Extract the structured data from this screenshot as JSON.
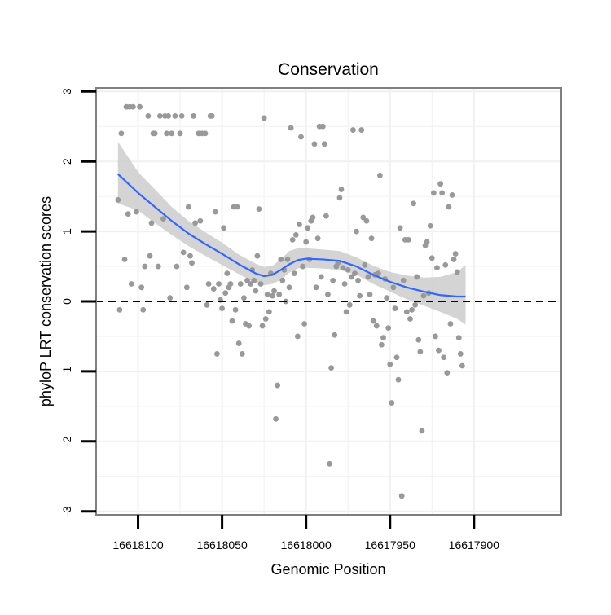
{
  "chart_data": {
    "type": "scatter",
    "title": "Conservation",
    "xlabel": "Genomic Position",
    "ylabel": "phyloP LRT conservation scores",
    "x_reversed": true,
    "xlim": [
      16618125,
      16617848
    ],
    "ylim": [
      -3.05,
      3.05
    ],
    "x_ticks": [
      16618100,
      16618050,
      16618000,
      16617950,
      16617900
    ],
    "x_tick_labels": [
      "16618100",
      "16618050",
      "16618000",
      "16617950",
      "16617900"
    ],
    "y_ticks": [
      3,
      2,
      1,
      0,
      -1,
      -2,
      -3
    ],
    "y_tick_labels": [
      "3",
      "2",
      "1",
      "0",
      "-1",
      "-2",
      "-3"
    ],
    "grid": true,
    "reference_line": {
      "y": 0,
      "style": "dashed",
      "color": "#000000"
    },
    "colors": {
      "points": "#999999",
      "smooth": "#3366FF",
      "ribbon": "#cccccc",
      "panel_border": "#7f7f7f",
      "grid": "#f0f0f0"
    },
    "series": [
      {
        "name": "scores",
        "kind": "points",
        "points": [
          [
            16618112,
            1.45
          ],
          [
            16618111,
            -0.12
          ],
          [
            16618110,
            2.4
          ],
          [
            16618108,
            0.6
          ],
          [
            16618107,
            2.78
          ],
          [
            16618106,
            1.25
          ],
          [
            16618105,
            2.78
          ],
          [
            16618104,
            0.25
          ],
          [
            16618103,
            2.78
          ],
          [
            16618101,
            1.28
          ],
          [
            16618099,
            2.78
          ],
          [
            16618098,
            0.2
          ],
          [
            16618097,
            -0.12
          ],
          [
            16618096,
            0.5
          ],
          [
            16618094,
            2.65
          ],
          [
            16618093,
            0.65
          ],
          [
            16618092,
            1.12
          ],
          [
            16618091,
            2.4
          ],
          [
            16618090,
            2.4
          ],
          [
            16618088,
            0.5
          ],
          [
            16618087,
            2.65
          ],
          [
            16618085,
            1.18
          ],
          [
            16618084,
            2.65
          ],
          [
            16618083,
            2.4
          ],
          [
            16618082,
            2.65
          ],
          [
            16618081,
            0.05
          ],
          [
            16618080,
            2.4
          ],
          [
            16618078,
            2.65
          ],
          [
            16618077,
            0.5
          ],
          [
            16618075,
            2.4
          ],
          [
            16618074,
            2.65
          ],
          [
            16618073,
            0.7
          ],
          [
            16618071,
            0.2
          ],
          [
            16618070,
            1.35
          ],
          [
            16618069,
            0.65
          ],
          [
            16618068,
            0.55
          ],
          [
            16618067,
            2.65
          ],
          [
            16618066,
            1.12
          ],
          [
            16618064,
            2.4
          ],
          [
            16618063,
            1.15
          ],
          [
            16618062,
            2.4
          ],
          [
            16618060,
            2.4
          ],
          [
            16618059,
            -0.05
          ],
          [
            16618058,
            0.25
          ],
          [
            16618057,
            2.65
          ],
          [
            16618056,
            2.65
          ],
          [
            16618055,
            0.18
          ],
          [
            16618054,
            1.28
          ],
          [
            16618053,
            -0.75
          ],
          [
            16618052,
            0.25
          ],
          [
            16618051,
            0.02
          ],
          [
            16618050,
            -0.1
          ],
          [
            16618049,
            1.05
          ],
          [
            16618048,
            0.12
          ],
          [
            16618047,
            0.4
          ],
          [
            16618046,
            0.2
          ],
          [
            16618045,
            0.25
          ],
          [
            16618044,
            -0.28
          ],
          [
            16618043,
            1.35
          ],
          [
            16618042,
            -0.12
          ],
          [
            16618041,
            1.35
          ],
          [
            16618040,
            -0.6
          ],
          [
            16618039,
            0.25
          ],
          [
            16618038,
            -0.75
          ],
          [
            16618037,
            0.05
          ],
          [
            16618036,
            -0.32
          ],
          [
            16618035,
            0.3
          ],
          [
            16618034,
            -0.35
          ],
          [
            16618033,
            0.25
          ],
          [
            16618032,
            0.45
          ],
          [
            16618031,
            0.3
          ],
          [
            16618030,
            0.15
          ],
          [
            16618029,
            0.65
          ],
          [
            16618028,
            1.32
          ],
          [
            16618027,
            0.25
          ],
          [
            16618026,
            -0.35
          ],
          [
            16618025,
            2.62
          ],
          [
            16618024,
            -0.25
          ],
          [
            16618023,
            0.1
          ],
          [
            16618022,
            -0.15
          ],
          [
            16618021,
            0.4
          ],
          [
            16618020,
            0.08
          ],
          [
            16618019,
            0.15
          ],
          [
            16618018,
            -1.68
          ],
          [
            16618017,
            -1.2
          ],
          [
            16618016,
            0.1
          ],
          [
            16618015,
            0.6
          ],
          [
            16618014,
            0.3
          ],
          [
            16618013,
            0.45
          ],
          [
            16618012,
            0.0
          ],
          [
            16618011,
            0.6
          ],
          [
            16618010,
            0.2
          ],
          [
            16618009,
            2.48
          ],
          [
            16618008,
            0.88
          ],
          [
            16618007,
            0.4
          ],
          [
            16618006,
            0.95
          ],
          [
            16618005,
            -0.5
          ],
          [
            16618004,
            1.1
          ],
          [
            16618003,
            2.35
          ],
          [
            16618002,
            0.5
          ],
          [
            16618001,
            -0.32
          ],
          [
            16618000,
            0.85
          ],
          [
            16617999,
            1.05
          ],
          [
            16617998,
            0.6
          ],
          [
            16617997,
            1.15
          ],
          [
            16617996,
            1.2
          ],
          [
            16617995,
            2.25
          ],
          [
            16617994,
            0.2
          ],
          [
            16617993,
            0.9
          ],
          [
            16617992,
            2.5
          ],
          [
            16617991,
            0.35
          ],
          [
            16617990,
            2.5
          ],
          [
            16617989,
            2.25
          ],
          [
            16617988,
            1.22
          ],
          [
            16617987,
            0.1
          ],
          [
            16617986,
            -2.32
          ],
          [
            16617985,
            -0.95
          ],
          [
            16617984,
            0.3
          ],
          [
            16617983,
            -0.48
          ],
          [
            16617982,
            0.5
          ],
          [
            16617981,
            0.55
          ],
          [
            16617980,
            1.48
          ],
          [
            16617979,
            1.6
          ],
          [
            16617978,
            0.48
          ],
          [
            16617977,
            0.25
          ],
          [
            16617976,
            -0.15
          ],
          [
            16617975,
            0.45
          ],
          [
            16617974,
            -0.05
          ],
          [
            16617973,
            0.35
          ],
          [
            16617972,
            2.45
          ],
          [
            16617971,
            0.4
          ],
          [
            16617970,
            1.0
          ],
          [
            16617969,
            0.3
          ],
          [
            16617968,
            0.08
          ],
          [
            16617967,
            2.45
          ],
          [
            16617966,
            1.2
          ],
          [
            16617965,
            0.52
          ],
          [
            16617964,
            1.15
          ],
          [
            16617963,
            0.35
          ],
          [
            16617962,
            0.1
          ],
          [
            16617961,
            0.9
          ],
          [
            16617960,
            -0.28
          ],
          [
            16617959,
            0.38
          ],
          [
            16617958,
            -0.35
          ],
          [
            16617957,
            0.4
          ],
          [
            16617956,
            1.8
          ],
          [
            16617955,
            -0.62
          ],
          [
            16617954,
            -0.52
          ],
          [
            16617953,
            0.32
          ],
          [
            16617952,
            0.05
          ],
          [
            16617951,
            -0.38
          ],
          [
            16617950,
            -0.9
          ],
          [
            16617949,
            -1.45
          ],
          [
            16617948,
            0.2
          ],
          [
            16617947,
            -0.1
          ],
          [
            16617946,
            -0.8
          ],
          [
            16617945,
            -1.12
          ],
          [
            16617944,
            1.05
          ],
          [
            16617943,
            -2.78
          ],
          [
            16617942,
            0.3
          ],
          [
            16617941,
            0.88
          ],
          [
            16617940,
            -0.15
          ],
          [
            16617939,
            0.88
          ],
          [
            16617938,
            -0.25
          ],
          [
            16617937,
            -0.12
          ],
          [
            16617936,
            1.4
          ],
          [
            16617935,
            -0.05
          ],
          [
            16617934,
            0.35
          ],
          [
            16617933,
            -0.55
          ],
          [
            16617932,
            -0.72
          ],
          [
            16617931,
            -1.85
          ],
          [
            16617930,
            0.08
          ],
          [
            16617929,
            0.8
          ],
          [
            16617928,
            0.85
          ],
          [
            16617927,
            0.12
          ],
          [
            16617926,
            1.08
          ],
          [
            16617925,
            0.62
          ],
          [
            16617924,
            1.55
          ],
          [
            16617923,
            -0.5
          ],
          [
            16617922,
            0.48
          ],
          [
            16617921,
            -0.7
          ],
          [
            16617920,
            1.68
          ],
          [
            16617919,
            1.55
          ],
          [
            16617918,
            -0.8
          ],
          [
            16617917,
            0.52
          ],
          [
            16617916,
            -1.02
          ],
          [
            16617915,
            1.35
          ],
          [
            16617914,
            -0.32
          ],
          [
            16617913,
            1.52
          ],
          [
            16617912,
            0.6
          ],
          [
            16617911,
            0.68
          ],
          [
            16617910,
            0.42
          ],
          [
            16617909,
            -0.52
          ],
          [
            16617908,
            -0.75
          ],
          [
            16617907,
            -0.92
          ]
        ]
      },
      {
        "name": "loess fit",
        "kind": "smooth",
        "points": [
          [
            16618112,
            1.82
          ],
          [
            16618100,
            1.55
          ],
          [
            16618090,
            1.35
          ],
          [
            16618080,
            1.15
          ],
          [
            16618070,
            0.97
          ],
          [
            16618060,
            0.82
          ],
          [
            16618050,
            0.68
          ],
          [
            16618040,
            0.53
          ],
          [
            16618030,
            0.4
          ],
          [
            16618025,
            0.36
          ],
          [
            16618020,
            0.38
          ],
          [
            16618015,
            0.45
          ],
          [
            16618010,
            0.53
          ],
          [
            16618005,
            0.59
          ],
          [
            16618000,
            0.61
          ],
          [
            16617990,
            0.6
          ],
          [
            16617980,
            0.58
          ],
          [
            16617970,
            0.5
          ],
          [
            16617960,
            0.38
          ],
          [
            16617950,
            0.28
          ],
          [
            16617940,
            0.2
          ],
          [
            16617930,
            0.14
          ],
          [
            16617920,
            0.09
          ],
          [
            16617910,
            0.07
          ],
          [
            16617905,
            0.07
          ]
        ],
        "ci": [
          [
            16618112,
            1.4,
            2.28
          ],
          [
            16618100,
            1.3,
            1.85
          ],
          [
            16618090,
            1.12,
            1.6
          ],
          [
            16618080,
            0.95,
            1.35
          ],
          [
            16618070,
            0.79,
            1.15
          ],
          [
            16618060,
            0.65,
            0.99
          ],
          [
            16618050,
            0.52,
            0.84
          ],
          [
            16618040,
            0.39,
            0.67
          ],
          [
            16618030,
            0.26,
            0.54
          ],
          [
            16618025,
            0.23,
            0.49
          ],
          [
            16618020,
            0.25,
            0.51
          ],
          [
            16618015,
            0.31,
            0.6
          ],
          [
            16618010,
            0.41,
            0.72
          ],
          [
            16618005,
            0.47,
            0.76
          ],
          [
            16618000,
            0.48,
            0.76
          ],
          [
            16617990,
            0.47,
            0.74
          ],
          [
            16617980,
            0.45,
            0.72
          ],
          [
            16617970,
            0.38,
            0.63
          ],
          [
            16617960,
            0.25,
            0.51
          ],
          [
            16617950,
            0.14,
            0.42
          ],
          [
            16617940,
            0.03,
            0.37
          ],
          [
            16617930,
            -0.06,
            0.34
          ],
          [
            16617920,
            -0.15,
            0.35
          ],
          [
            16617910,
            -0.25,
            0.42
          ],
          [
            16617905,
            -0.33,
            0.52
          ]
        ]
      }
    ]
  }
}
